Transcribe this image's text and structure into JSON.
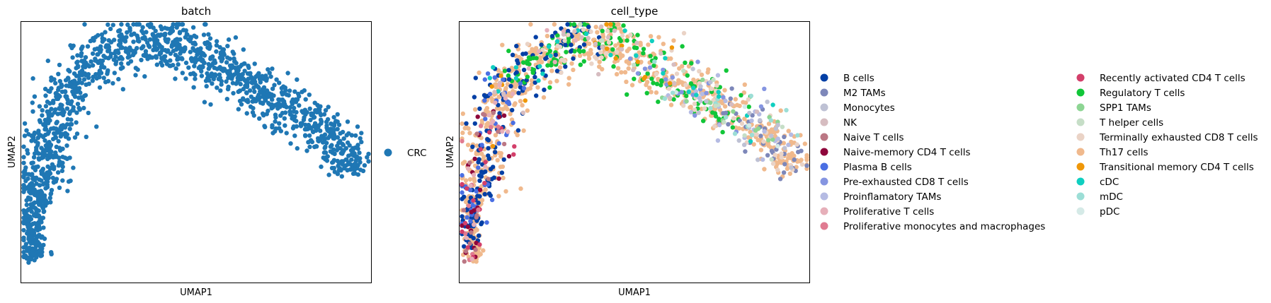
{
  "figure": {
    "background": "#ffffff"
  },
  "chart_data": [
    {
      "type": "scatter",
      "title": "batch",
      "xlabel": "UMAP1",
      "ylabel": "UMAP2",
      "xticks": [],
      "yticks": [],
      "grid": false,
      "legend_placement": "right",
      "xlim": [
        -3.5,
        12.0
      ],
      "ylim": [
        -2.0,
        9.5
      ],
      "categories": [
        {
          "name": "CRC",
          "color": "#1f77b4"
        }
      ],
      "trajectory": {
        "x": [
          -2.9,
          -3.0,
          -2.7,
          -2.5,
          -2.1,
          -1.6,
          -1.0,
          -0.2,
          0.6,
          1.5,
          2.6,
          3.4,
          4.4,
          5.5,
          6.7,
          7.9,
          9.2,
          10.4,
          11.1,
          11.2
        ],
        "y": [
          -1.0,
          0.8,
          2.0,
          3.5,
          4.9,
          6.1,
          7.3,
          7.9,
          8.3,
          8.5,
          8.9,
          8.5,
          7.9,
          7.3,
          6.7,
          5.9,
          5.1,
          4.4,
          3.6,
          2.8
        ],
        "spread": 0.55
      },
      "n_points": 1500
    },
    {
      "type": "scatter",
      "title": "cell_type",
      "xlabel": "UMAP1",
      "ylabel": "UMAP2",
      "xticks": [],
      "yticks": [],
      "grid": false,
      "legend_placement": "right",
      "legend_columns": 2,
      "xlim": [
        -3.5,
        12.0
      ],
      "ylim": [
        -2.0,
        9.5
      ],
      "categories": [
        {
          "name": "B cells",
          "color": "#023fa5",
          "weight": 9,
          "region": [
            0.02,
            0.55
          ]
        },
        {
          "name": "M2 TAMs",
          "color": "#7d87b9",
          "weight": 5,
          "region": [
            0.8,
            1.0
          ]
        },
        {
          "name": "Monocytes",
          "color": "#bec1d4",
          "weight": 1,
          "region": [
            0.7,
            1.0
          ]
        },
        {
          "name": "NK",
          "color": "#d6bcc0",
          "weight": 1,
          "region": [
            0.3,
            0.9
          ]
        },
        {
          "name": "Naive T cells",
          "color": "#bb7784",
          "weight": 1,
          "region": [
            0.0,
            0.3
          ]
        },
        {
          "name": "Naive-memory CD4 T cells",
          "color": "#8e063b",
          "weight": 2,
          "region": [
            0.0,
            0.3
          ]
        },
        {
          "name": "Plasma B cells",
          "color": "#4a6fe3",
          "weight": 4,
          "region": [
            0.05,
            0.35
          ]
        },
        {
          "name": "Pre-exhausted CD8 T cells",
          "color": "#8595e1",
          "weight": 2,
          "region": [
            0.6,
            0.9
          ]
        },
        {
          "name": "Proinflamatory TAMs",
          "color": "#b5bbe3",
          "weight": 2,
          "region": [
            0.7,
            0.95
          ]
        },
        {
          "name": "Proliferative T cells",
          "color": "#e6afb9",
          "weight": 1,
          "region": [
            0.0,
            0.5
          ]
        },
        {
          "name": "Proliferative monocytes and macrophages",
          "color": "#e07b91",
          "weight": 1,
          "region": [
            0.0,
            0.3
          ]
        },
        {
          "name": "Recently activated CD4 T cells",
          "color": "#d33f6a",
          "weight": 1,
          "region": [
            0.0,
            0.3
          ]
        },
        {
          "name": "Regulatory T cells",
          "color": "#11c638",
          "weight": 9,
          "region": [
            0.35,
            0.85
          ]
        },
        {
          "name": "SPP1 TAMs",
          "color": "#8dd593",
          "weight": 2,
          "region": [
            0.7,
            0.95
          ]
        },
        {
          "name": "T helper cells",
          "color": "#c6dec7",
          "weight": 1,
          "region": [
            0.5,
            0.95
          ]
        },
        {
          "name": "Terminally exhausted CD8 T cells",
          "color": "#ead3c6",
          "weight": 3,
          "region": [
            0.4,
            1.0
          ]
        },
        {
          "name": "Th17 cells",
          "color": "#f0b98d",
          "weight": 20,
          "region": [
            0.0,
            1.0
          ]
        },
        {
          "name": "Transitional memory CD4 T cells",
          "color": "#ef9708",
          "weight": 1,
          "region": [
            0.2,
            0.7
          ]
        },
        {
          "name": "cDC",
          "color": "#0fcfc0",
          "weight": 1,
          "region": [
            0.3,
            0.9
          ]
        },
        {
          "name": "mDC",
          "color": "#9cded6",
          "weight": 1,
          "region": [
            0.6,
            0.95
          ]
        },
        {
          "name": "pDC",
          "color": "#d5eae7",
          "weight": 1,
          "region": [
            0.7,
            1.0
          ]
        }
      ],
      "n_points": 1500
    }
  ]
}
